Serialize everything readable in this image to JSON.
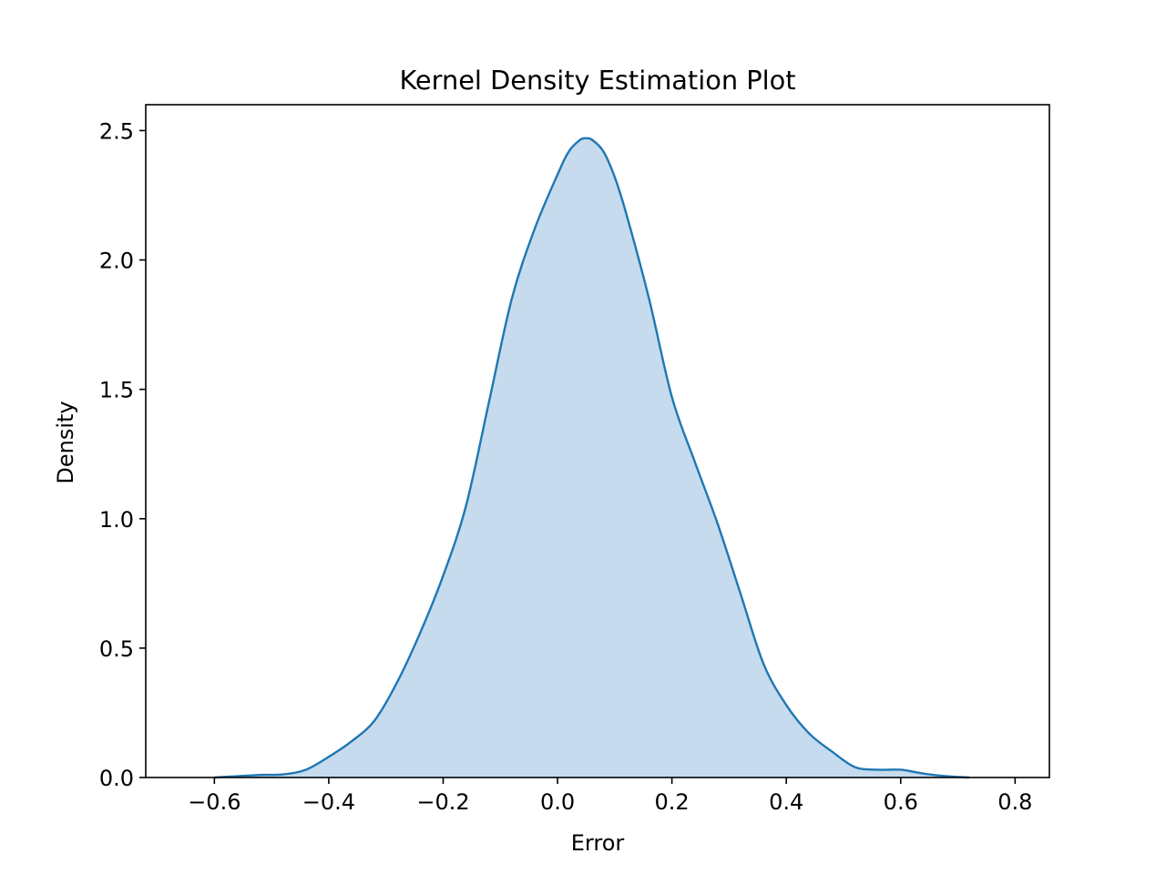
{
  "chart_data": {
    "type": "area",
    "title": "Kernel Density Estimation Plot",
    "xlabel": "Error",
    "ylabel": "Density",
    "xlim": [
      -0.72,
      0.86
    ],
    "ylim": [
      0,
      2.6
    ],
    "xticks": [
      -0.6,
      -0.4,
      -0.2,
      0.0,
      0.2,
      0.4,
      0.6,
      0.8
    ],
    "xtick_labels": [
      "−0.6",
      "−0.4",
      "−0.2",
      "0.0",
      "0.2",
      "0.4",
      "0.6",
      "0.8"
    ],
    "yticks": [
      0.0,
      0.5,
      1.0,
      1.5,
      2.0,
      2.5
    ],
    "ytick_labels": [
      "0.0",
      "0.5",
      "1.0",
      "1.5",
      "2.0",
      "2.5"
    ],
    "grid": false,
    "legend": false,
    "series": [
      {
        "x": [
          -0.6,
          -0.56,
          -0.52,
          -0.48,
          -0.44,
          -0.4,
          -0.36,
          -0.32,
          -0.28,
          -0.24,
          -0.2,
          -0.16,
          -0.12,
          -0.08,
          -0.04,
          0.0,
          0.02,
          0.04,
          0.05,
          0.06,
          0.08,
          0.1,
          0.12,
          0.16,
          0.2,
          0.24,
          0.28,
          0.32,
          0.36,
          0.4,
          0.44,
          0.48,
          0.52,
          0.56,
          0.6,
          0.64,
          0.68,
          0.72
        ],
        "y": [
          0.0,
          0.005,
          0.01,
          0.012,
          0.03,
          0.08,
          0.14,
          0.22,
          0.37,
          0.56,
          0.78,
          1.05,
          1.45,
          1.85,
          2.12,
          2.33,
          2.42,
          2.465,
          2.47,
          2.465,
          2.42,
          2.32,
          2.18,
          1.85,
          1.47,
          1.22,
          0.98,
          0.71,
          0.44,
          0.28,
          0.17,
          0.1,
          0.04,
          0.03,
          0.03,
          0.015,
          0.005,
          0.0
        ]
      }
    ],
    "colors": {
      "line": "#1f77b4",
      "fill": "#c6dbed",
      "axes": "#000000"
    }
  }
}
